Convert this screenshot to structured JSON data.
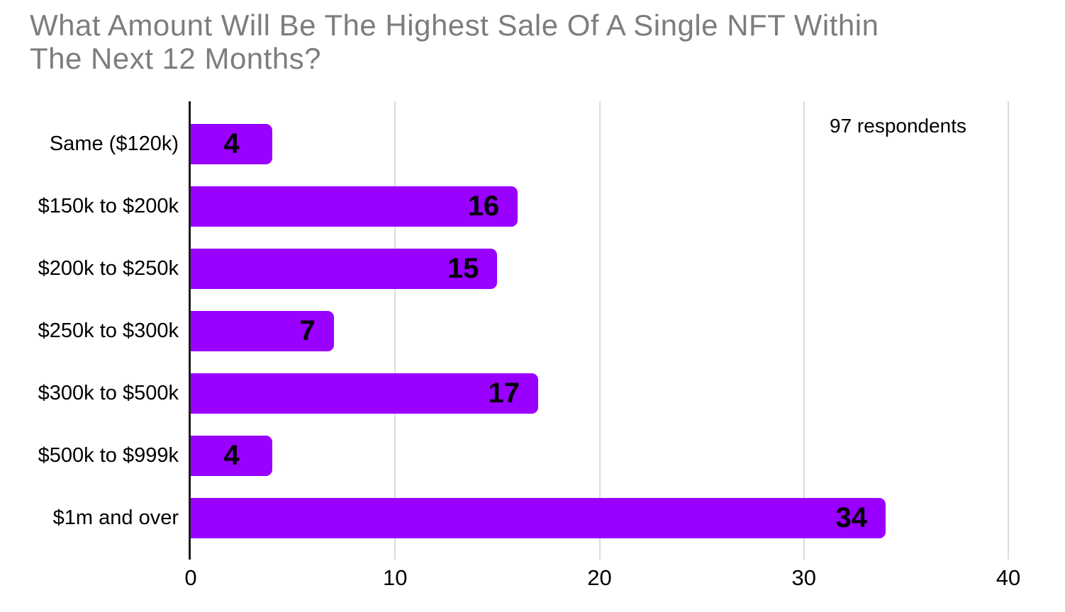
{
  "chart_data": {
    "type": "bar",
    "orientation": "horizontal",
    "title": "What Amount Will Be The Highest Sale Of A Single NFT Within The Next 12 Months?",
    "title_lines": {
      "line1": "What Amount Will Be The Highest Sale Of A Single NFT Within",
      "line2": "The Next 12 Months?"
    },
    "categories": [
      "Same ($120k)",
      "$150k to $200k",
      "$200k to $250k",
      "$250k to $300k",
      "$300k to $500k",
      "$500k to $999k",
      "$1m and over"
    ],
    "values": [
      4,
      16,
      15,
      7,
      17,
      4,
      34
    ],
    "annotation": "97 respondents",
    "x_ticks": [
      0,
      10,
      20,
      30,
      40
    ],
    "xlim": [
      0,
      40
    ],
    "xlabel": "",
    "ylabel": "",
    "grid": true,
    "legend": false,
    "colors": {
      "bar": "#9900ff",
      "value_label": "#000000",
      "title": "#7d7d7d",
      "axis_line": "#1d1d1d",
      "gridline": "#dcdcdc",
      "text": "#000000",
      "background": "#ffffff"
    }
  }
}
